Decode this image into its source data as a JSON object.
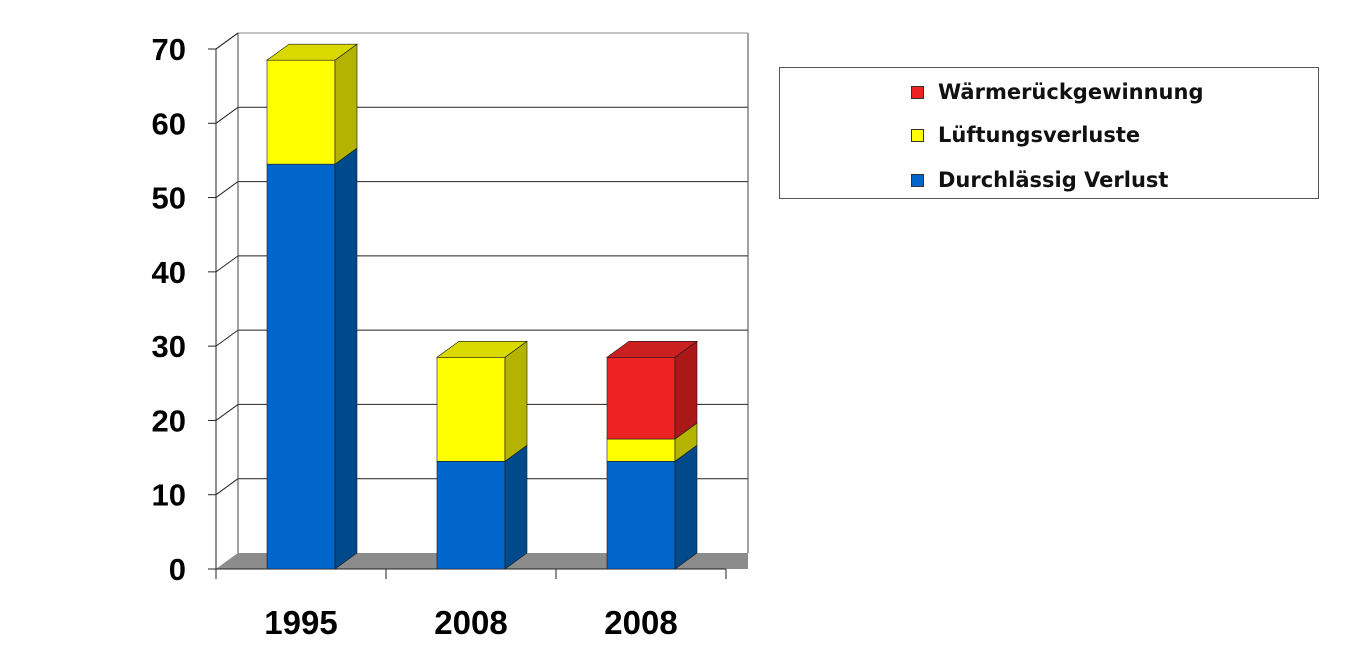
{
  "chart_data": {
    "type": "bar",
    "stacked": true,
    "three_d": true,
    "categories": [
      "1995",
      "2008",
      "2008"
    ],
    "series": [
      {
        "name": "Durchlässig Verlust",
        "values": [
          54.5,
          14.5,
          14.5
        ],
        "color": "#0066cc",
        "side_color": "#004a8c",
        "top_color": "#1a78d6"
      },
      {
        "name": "Lüftungsverluste",
        "values": [
          14,
          14,
          3
        ],
        "color": "#ffff00",
        "side_color": "#b3b300",
        "top_color": "#d9d900"
      },
      {
        "name": "Wärmerückgewinnung",
        "values": [
          0,
          0,
          11
        ],
        "color": "#ee2222",
        "side_color": "#aa1818",
        "top_color": "#cc2020"
      }
    ],
    "y_ticks": [
      "0",
      "10",
      "20",
      "30",
      "40",
      "50",
      "60",
      "70"
    ],
    "ylim": [
      0,
      70
    ],
    "grid": true,
    "legend_position": "top-right",
    "title": "",
    "xlabel": "",
    "ylabel": ""
  },
  "legend": {
    "items": [
      {
        "label": "Wärmerückgewinnung",
        "color": "#ee2222"
      },
      {
        "label": "Lüftungsverluste",
        "color": "#ffff00"
      },
      {
        "label": "Durchlässig Verlust",
        "color": "#0066cc"
      }
    ]
  }
}
